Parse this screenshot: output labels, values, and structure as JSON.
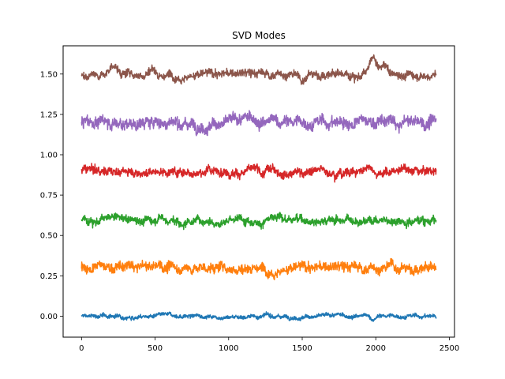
{
  "chart_data": {
    "type": "line",
    "title": "SVD Modes",
    "xlabel": "",
    "ylabel": "",
    "xlim": [
      -125,
      2535
    ],
    "ylim": [
      -0.13,
      1.675
    ],
    "x_ticks": [
      0,
      500,
      1000,
      1500,
      2000,
      2500
    ],
    "y_ticks": [
      0.0,
      0.25,
      0.5,
      0.75,
      1.0,
      1.25,
      1.5
    ],
    "x_tick_labels": [
      "0",
      "500",
      "1000",
      "1500",
      "2000",
      "2500"
    ],
    "y_tick_labels": [
      "0.00",
      "0.25",
      "0.50",
      "0.75",
      "1.00",
      "1.25",
      "1.50"
    ],
    "grid": false,
    "x_range": [
      0,
      2410
    ],
    "series": [
      {
        "color": "#1f77b4",
        "offset": 0.0,
        "amplitude": 0.012,
        "bumps": [
          {
            "x": 1980,
            "dy": -0.02
          }
        ]
      },
      {
        "color": "#ff7f0e",
        "offset": 0.3,
        "amplitude": 0.03,
        "bumps": [
          {
            "x": 540,
            "dy": 0.02
          },
          {
            "x": 1180,
            "dy": 0.02
          }
        ]
      },
      {
        "color": "#2ca02c",
        "offset": 0.6,
        "amplitude": 0.025,
        "bumps": [
          {
            "x": 540,
            "dy": 0.03
          },
          {
            "x": 680,
            "dy": -0.04
          }
        ]
      },
      {
        "color": "#d62728",
        "offset": 0.9,
        "amplitude": 0.025,
        "bumps": [
          {
            "x": 1230,
            "dy": -0.03
          },
          {
            "x": 1960,
            "dy": 0.03
          }
        ]
      },
      {
        "color": "#9467bd",
        "offset": 1.2,
        "amplitude": 0.035,
        "bumps": [
          {
            "x": 1170,
            "dy": 0.03
          },
          {
            "x": 2160,
            "dy": -0.03
          }
        ]
      },
      {
        "color": "#8c564b",
        "offset": 1.5,
        "amplitude": 0.025,
        "bumps": [
          {
            "x": 220,
            "dy": 0.06
          },
          {
            "x": 480,
            "dy": 0.04
          },
          {
            "x": 1490,
            "dy": -0.05
          },
          {
            "x": 1980,
            "dy": 0.09
          },
          {
            "x": 2060,
            "dy": 0.05
          }
        ]
      }
    ]
  }
}
